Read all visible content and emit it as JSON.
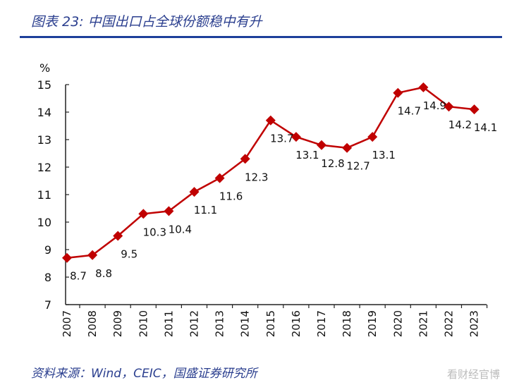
{
  "title": "图表 23:  中国出口占全球份额稳中有升",
  "source": "资料来源：Wind，CEIC，国盛证券研究所",
  "watermark": "看财经官博",
  "chart_data": {
    "type": "line",
    "title": "",
    "ylabel": "%",
    "xlabel": "",
    "ylim": [
      7,
      15
    ],
    "yticks": [
      7,
      8,
      9,
      10,
      11,
      12,
      13,
      14,
      15
    ],
    "categories": [
      "2007",
      "2008",
      "2009",
      "2010",
      "2011",
      "2012",
      "2013",
      "2014",
      "2015",
      "2016",
      "2017",
      "2018",
      "2019",
      "2020",
      "2021",
      "2022",
      "2023"
    ],
    "values": [
      8.7,
      8.8,
      9.5,
      10.3,
      10.4,
      11.1,
      11.6,
      12.3,
      13.7,
      13.1,
      12.8,
      12.7,
      13.1,
      14.7,
      14.9,
      14.2,
      14.1
    ],
    "labels": [
      "8.7",
      "8.8",
      "9.5",
      "10.3",
      "10.4",
      "11.1",
      "11.6",
      "12.3",
      "13.7",
      "13.1",
      "12.8",
      "12.7",
      "13.1",
      "14.7",
      "14.9",
      "14.2",
      "14.1"
    ],
    "marker": "diamond",
    "color": "#c00000",
    "grid": false,
    "legend": "none"
  }
}
